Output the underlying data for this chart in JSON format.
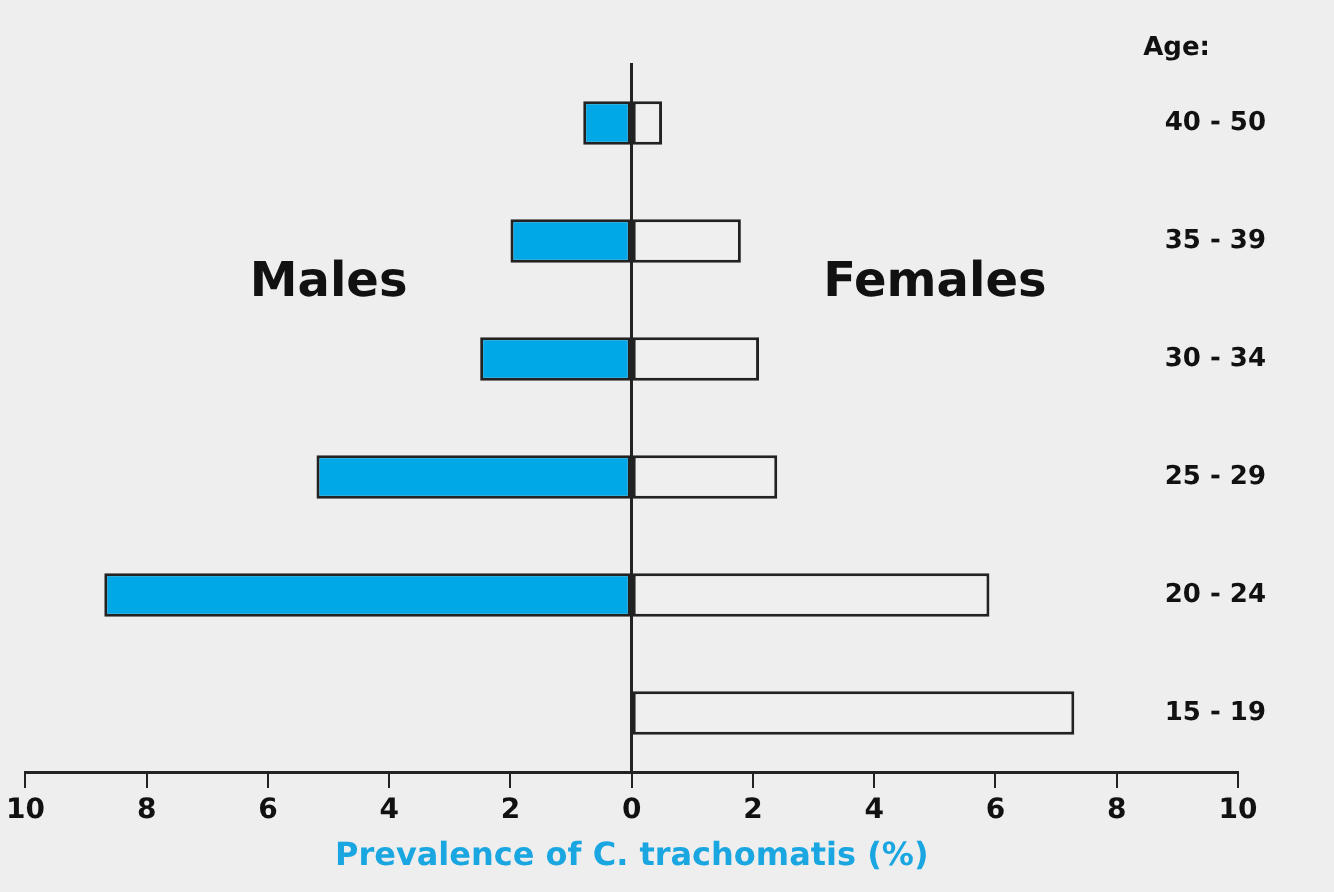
{
  "chart_data": {
    "type": "bar",
    "orientation": "horizontal",
    "stacked": true,
    "xlabel": "Prevalence of C. trachomatis (%)",
    "ylabel": "Age:",
    "categories": [
      "40 - 50",
      "35 - 39",
      "30 - 34",
      "25 - 29",
      "20 - 24",
      "15 - 19"
    ],
    "series": [
      {
        "name": "Males",
        "color": "#00a8e8",
        "values": [
          -0.8,
          -2.0,
          -2.5,
          -5.2,
          -8.7,
          0
        ]
      },
      {
        "name": "Females",
        "color": "#efefef",
        "values": [
          0.5,
          1.8,
          2.1,
          2.4,
          5.9,
          7.3
        ]
      }
    ],
    "xlim": [
      -10,
      10
    ],
    "xticks": [
      {
        "value": -10,
        "label": "10"
      },
      {
        "value": -8,
        "label": "8"
      },
      {
        "value": -6,
        "label": "6"
      },
      {
        "value": -4,
        "label": "4"
      },
      {
        "value": -2,
        "label": "2"
      },
      0,
      2,
      4,
      6,
      8,
      10
    ],
    "legend": false
  }
}
